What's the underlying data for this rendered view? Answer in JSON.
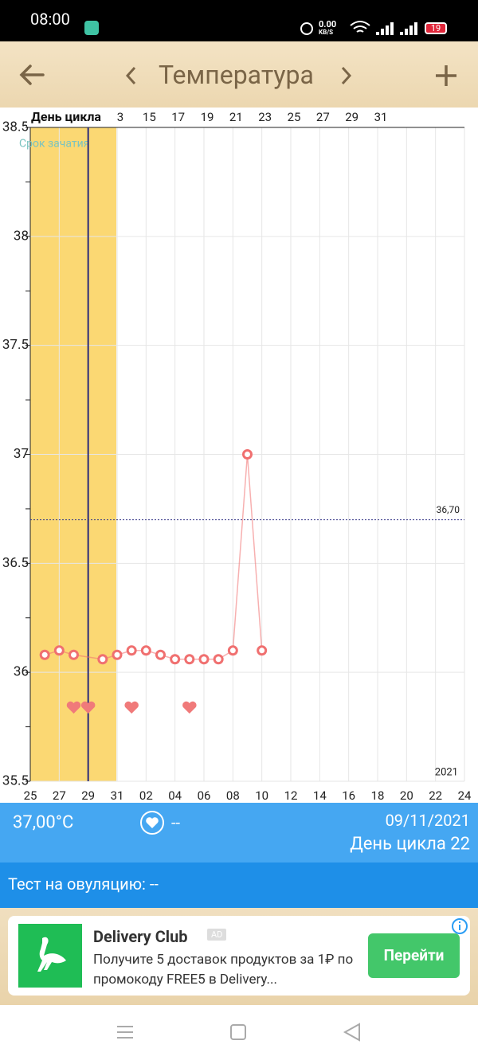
{
  "status_bar": {
    "time": "08:00",
    "speed": "0.00",
    "speed_unit": "KB/S",
    "battery": "19"
  },
  "header": {
    "title": "Температура"
  },
  "chart_data": {
    "type": "line",
    "top_axis_label": "День цикла",
    "categories": [
      "25",
      null,
      "27",
      null,
      "29",
      null,
      "31",
      null,
      "02",
      null,
      "04",
      null,
      "06",
      null,
      "08",
      null,
      "10",
      null,
      "12",
      null,
      "14",
      null,
      "16",
      null,
      "18",
      null,
      "20",
      null,
      "22",
      null,
      "24"
    ],
    "top_categories": [
      null,
      null,
      null,
      null,
      null,
      null,
      "3",
      null,
      "15",
      null,
      "17",
      null,
      "19",
      null,
      "21",
      null,
      "23",
      null,
      "25",
      null,
      "27",
      null,
      "29",
      null,
      "31",
      null,
      null,
      null,
      null,
      null,
      null
    ],
    "series": [
      {
        "color": "#f07070",
        "values": [
          null,
          36.08,
          36.1,
          36.08,
          null,
          36.06,
          36.08,
          36.1,
          36.1,
          36.08,
          36.06,
          36.06,
          36.06,
          36.06,
          36.1,
          37.0,
          36.1,
          null,
          null,
          null,
          null,
          null,
          null,
          null,
          null,
          null,
          null,
          null,
          null,
          null,
          null
        ]
      }
    ],
    "ylim": [
      35.5,
      38.5
    ],
    "yticks": [
      35.5,
      36,
      36.5,
      37,
      37.5,
      38,
      38.5
    ],
    "minor_yticks": [
      35.75,
      36.25,
      36.75,
      37.25,
      37.75,
      38.25
    ],
    "grid": true,
    "reference_line": {
      "value": 36.7,
      "label": "36,70"
    },
    "fertile_label": "Срок зачатия",
    "year_label": "2021"
  },
  "info": {
    "temperature": "37,00°C",
    "intercourse": "--",
    "date": "09/11/2021",
    "cycle_day": "День цикла 22"
  },
  "ovulation_test": "Тест на овуляцию: --",
  "ad": {
    "title": "Delivery Club",
    "badge": "AD",
    "text": "Получите 5 доставок продуктов за 1₽ по промокоду FREE5 в Delivery...",
    "button": "Перейти"
  }
}
